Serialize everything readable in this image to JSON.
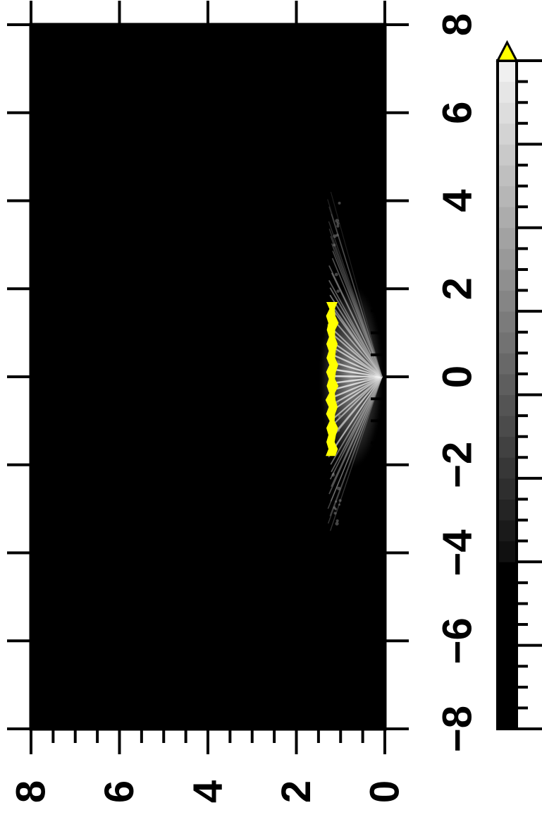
{
  "chart_data": {
    "type": "heatmap",
    "title": "",
    "xlabel": "",
    "ylabel": "",
    "orientation": "rotated-90",
    "primary_axis": {
      "range": [
        -8,
        8
      ],
      "major_ticks": [
        -8,
        -6,
        -4,
        -2,
        0,
        2,
        4,
        6,
        8
      ],
      "minor_step": 0.5,
      "tick_labels": [
        "−8",
        "−6",
        "−4",
        "−2",
        "0",
        "2",
        "4",
        "6",
        "8"
      ]
    },
    "secondary_axis": {
      "range": [
        0,
        8
      ],
      "major_ticks": [
        0,
        2,
        4,
        6,
        8
      ],
      "minor_step": 0.5,
      "tick_labels": [
        "0",
        "2",
        "4",
        "6",
        "8"
      ]
    },
    "colorbar": {
      "range": [
        -8,
        8
      ],
      "ticks": [
        -8,
        -6,
        -4,
        -2,
        0,
        2,
        4,
        6,
        8
      ],
      "tick_labels": [
        "−8",
        "−6",
        "−4",
        "−2",
        "0",
        "2",
        "4",
        "6",
        "8"
      ],
      "colormap": "grayscale",
      "low_color": "#000000",
      "high_color": "#f0f0f0",
      "overflow_color": "#ffff00",
      "extend": "max"
    },
    "features": {
      "background_level": -8,
      "saturated_band": {
        "secondary_position": 1.2,
        "primary_extent": [
          -1.8,
          1.7
        ]
      },
      "fan_apex": {
        "primary": 0,
        "secondary": 0
      },
      "fan_primary_extent": [
        -3.5,
        4.2
      ]
    }
  }
}
